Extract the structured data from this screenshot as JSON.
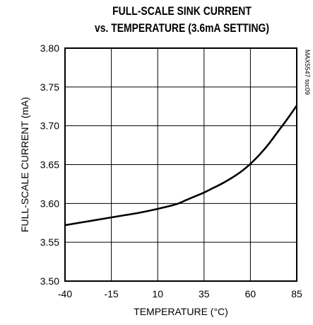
{
  "chart_data": {
    "type": "line",
    "title": [
      "FULL-SCALE SINK CURRENT",
      "vs. TEMPERATURE (3.6mA SETTING)"
    ],
    "xlabel": "TEMPERATURE (°C)",
    "ylabel": "FULL-SCALE CURRENT (mA)",
    "xlim": [
      -40,
      85
    ],
    "ylim": [
      3.5,
      3.8
    ],
    "x_ticks": [
      -40,
      -15,
      10,
      35,
      60,
      85
    ],
    "x_tick_labels": [
      "-40",
      "-15",
      "10",
      "35",
      "60",
      "85"
    ],
    "y_ticks": [
      3.5,
      3.55,
      3.6,
      3.65,
      3.7,
      3.75,
      3.8
    ],
    "y_tick_labels": [
      "3.50",
      "3.55",
      "3.60",
      "3.65",
      "3.70",
      "3.75",
      "3.80"
    ],
    "grid": true,
    "series": [
      {
        "x": [
          -40,
          -30,
          -20,
          -10,
          0,
          10,
          20,
          25,
          30,
          35,
          40,
          45,
          50,
          55,
          60,
          65,
          70,
          75,
          80,
          85
        ],
        "y": [
          3.572,
          3.576,
          3.58,
          3.584,
          3.588,
          3.593,
          3.599,
          3.604,
          3.609,
          3.614,
          3.62,
          3.626,
          3.633,
          3.641,
          3.651,
          3.663,
          3.677,
          3.693,
          3.709,
          3.726
        ],
        "color": "#000000"
      }
    ],
    "watermark": "MAX5547 toc09"
  }
}
